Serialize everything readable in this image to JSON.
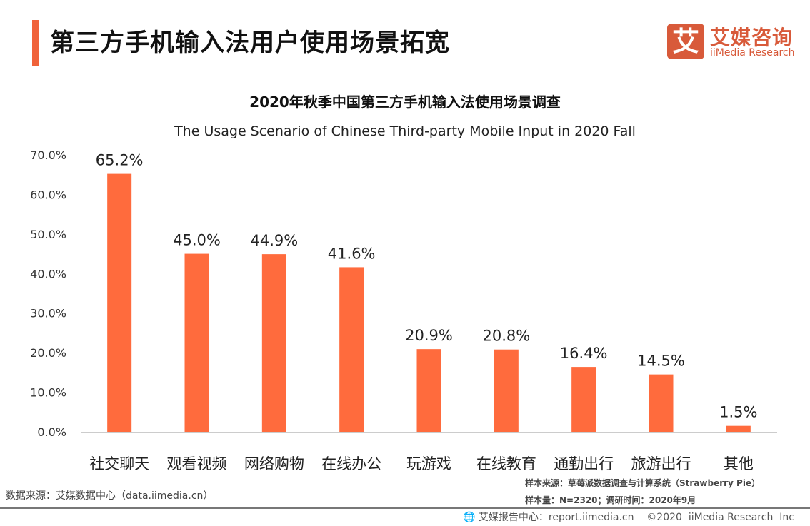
{
  "header": {
    "title": "第三方手机输入法用户使用场景拓宽",
    "accent_color": "#f0623a"
  },
  "logo": {
    "mark": "艾",
    "cn": "艾媒咨询",
    "en": "iiMedia Research"
  },
  "chart_data": {
    "type": "bar",
    "title": "2020年秋季中国第三方手机输入法使用场景调查",
    "subtitle": "The Usage Scenario of Chinese Third-party Mobile Input in 2020 Fall",
    "categories": [
      "社交聊天",
      "观看视频",
      "网络购物",
      "在线办公",
      "玩游戏",
      "在线教育",
      "通勤出行",
      "旅游出行",
      "其他"
    ],
    "values": [
      65.2,
      45.0,
      44.9,
      41.6,
      20.9,
      20.8,
      16.4,
      14.5,
      1.5
    ],
    "data_labels": [
      "65.2%",
      "45.0%",
      "44.9%",
      "41.6%",
      "20.9%",
      "20.8%",
      "16.4%",
      "14.5%",
      "1.5%"
    ],
    "ylim": [
      0,
      70
    ],
    "yticks": [
      "0.0%",
      "10.0%",
      "20.0%",
      "30.0%",
      "40.0%",
      "50.0%",
      "60.0%",
      "70.0%"
    ],
    "grid": false,
    "bar_color": "#ff6b3d"
  },
  "footer": {
    "source": "数据来源：艾媒数据中心（data.iimedia.cn）",
    "sample_source": "样本来源：草莓派数据调查与计算系统（Strawberry Pie）",
    "sample_size": "样本量：N=2320；调研时间：2020年9月",
    "report": "艾媒报告中心：report.iimedia.cn    ©2020  iiMedia Research  Inc"
  }
}
